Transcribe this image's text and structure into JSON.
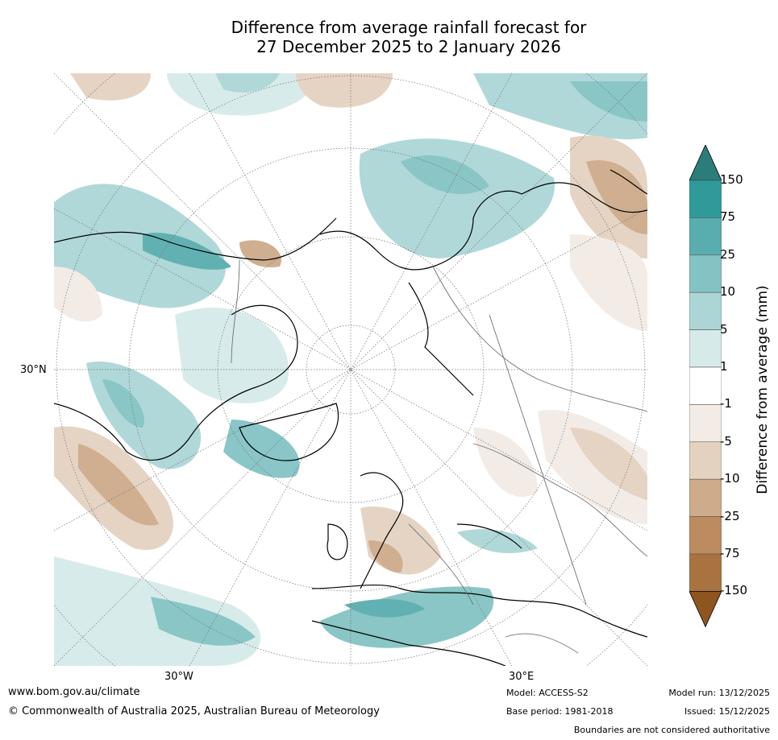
{
  "title": {
    "line1": "Difference from average rainfall forecast for",
    "line2": "27 December 2025 to 2 January 2026"
  },
  "map": {
    "projection": "north-polar-stereographic",
    "lat_label": "30°N",
    "lon_labels": [
      "30°W",
      "30°E"
    ]
  },
  "colorbar": {
    "label": "Difference from average (mm)",
    "ticks": [
      "150",
      "75",
      "25",
      "10",
      "5",
      "1",
      "-1",
      "-5",
      "-10",
      "-25",
      "-75",
      "-150"
    ],
    "colors": [
      "#2a7d7b",
      "#30999a",
      "#5aadae",
      "#84c3c4",
      "#acd6d6",
      "#d6eaea",
      "#ffffff",
      "#f3ebe5",
      "#e4d2c1",
      "#cdab8b",
      "#bc8b5f",
      "#a8733e",
      "#8d561f"
    ]
  },
  "footer": {
    "url": "www.bom.gov.au/climate",
    "copyright": "© Commonwealth of Australia 2025, Australian Bureau of Meteorology",
    "model": "Model: ACCESS-S2",
    "base_period": "Base period: 1981-2018",
    "model_run": "Model run: 13/12/2025",
    "issued": "Issued: 15/12/2025",
    "disclaimer": "Boundaries are not considered authoritative"
  }
}
